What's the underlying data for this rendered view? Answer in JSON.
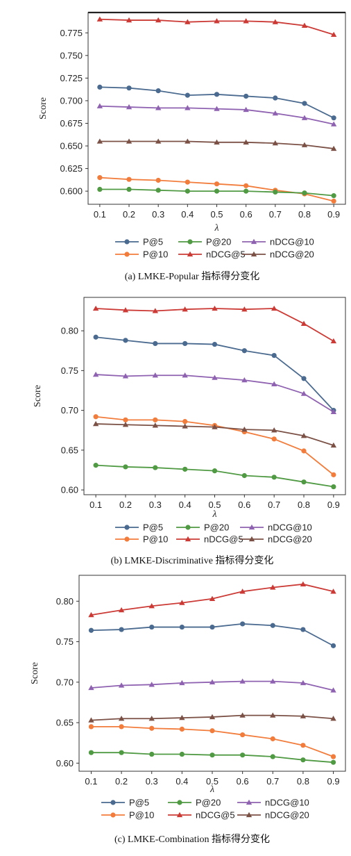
{
  "chart_data": [
    {
      "type": "line",
      "caption": "(a) LMKE-Popular 指标得分变化",
      "xlabel": "λ",
      "ylabel": "Score",
      "x": [
        0.1,
        0.2,
        0.3,
        0.4,
        0.5,
        0.6,
        0.7,
        0.8,
        0.9
      ],
      "x_ticks": [
        "0.1",
        "0.2",
        "0.3",
        "0.4",
        "0.5",
        "0.6",
        "0.7",
        "0.8",
        "0.9"
      ],
      "y_ticks": [
        "0.600",
        "0.625",
        "0.650",
        "0.675",
        "0.700",
        "0.725",
        "0.750",
        "0.775"
      ],
      "ylim": [
        0.5855,
        0.7975
      ],
      "xlim": [
        0.06,
        0.94
      ],
      "grid": false,
      "legend": "bottom",
      "series": [
        {
          "name": "P@5",
          "color": "#4a6a8f",
          "marker": "circle",
          "values": [
            0.715,
            0.714,
            0.711,
            0.706,
            0.707,
            0.705,
            0.703,
            0.697,
            0.681
          ]
        },
        {
          "name": "P@10",
          "color": "#f27c3b",
          "marker": "circle",
          "values": [
            0.615,
            0.613,
            0.612,
            0.61,
            0.608,
            0.606,
            0.601,
            0.597,
            0.589
          ]
        },
        {
          "name": "P@20",
          "color": "#4f9a43",
          "marker": "circle",
          "values": [
            0.602,
            0.602,
            0.601,
            0.6,
            0.6,
            0.6,
            0.599,
            0.598,
            0.595
          ]
        },
        {
          "name": "nDCG@5",
          "color": "#cc3a35",
          "marker": "triangle",
          "values": [
            0.79,
            0.789,
            0.789,
            0.787,
            0.788,
            0.788,
            0.787,
            0.783,
            0.773
          ]
        },
        {
          "name": "nDCG@10",
          "color": "#8f62b1",
          "marker": "triangle",
          "values": [
            0.694,
            0.693,
            0.692,
            0.692,
            0.691,
            0.69,
            0.686,
            0.681,
            0.674
          ]
        },
        {
          "name": "nDCG@20",
          "color": "#7b5146",
          "marker": "triangle",
          "values": [
            0.655,
            0.655,
            0.655,
            0.655,
            0.654,
            0.654,
            0.653,
            0.651,
            0.647
          ]
        }
      ]
    },
    {
      "type": "line",
      "caption": "(b) LMKE-Discriminative 指标得分变化",
      "xlabel": "λ",
      "ylabel": "Score",
      "x": [
        0.1,
        0.2,
        0.3,
        0.4,
        0.5,
        0.6,
        0.7,
        0.8,
        0.9
      ],
      "x_ticks": [
        "0.1",
        "0.2",
        "0.3",
        "0.4",
        "0.5",
        "0.6",
        "0.7",
        "0.8",
        "0.9"
      ],
      "y_ticks": [
        "0.60",
        "0.65",
        "0.70",
        "0.75",
        "0.80"
      ],
      "ylim": [
        0.594,
        0.842
      ],
      "xlim": [
        0.06,
        0.94
      ],
      "grid": false,
      "legend": "bottom",
      "series": [
        {
          "name": "P@5",
          "color": "#4a6a8f",
          "marker": "circle",
          "values": [
            0.792,
            0.788,
            0.784,
            0.784,
            0.783,
            0.775,
            0.769,
            0.74,
            0.7
          ]
        },
        {
          "name": "P@10",
          "color": "#f27c3b",
          "marker": "circle",
          "values": [
            0.692,
            0.688,
            0.688,
            0.686,
            0.681,
            0.673,
            0.664,
            0.649,
            0.619
          ]
        },
        {
          "name": "P@20",
          "color": "#4f9a43",
          "marker": "circle",
          "values": [
            0.631,
            0.629,
            0.628,
            0.626,
            0.624,
            0.618,
            0.616,
            0.61,
            0.604
          ]
        },
        {
          "name": "nDCG@5",
          "color": "#cc3a35",
          "marker": "triangle",
          "values": [
            0.828,
            0.826,
            0.825,
            0.827,
            0.828,
            0.827,
            0.828,
            0.809,
            0.787
          ]
        },
        {
          "name": "nDCG@10",
          "color": "#8f62b1",
          "marker": "triangle",
          "values": [
            0.745,
            0.743,
            0.744,
            0.744,
            0.741,
            0.738,
            0.733,
            0.721,
            0.698
          ]
        },
        {
          "name": "nDCG@20",
          "color": "#7b5146",
          "marker": "triangle",
          "values": [
            0.683,
            0.682,
            0.681,
            0.68,
            0.679,
            0.676,
            0.675,
            0.668,
            0.656
          ]
        }
      ]
    },
    {
      "type": "line",
      "caption": "(c) LMKE-Combination 指标得分变化",
      "xlabel": "λ",
      "ylabel": "Score",
      "x": [
        0.1,
        0.2,
        0.3,
        0.4,
        0.5,
        0.6,
        0.7,
        0.8,
        0.9
      ],
      "x_ticks": [
        "0.1",
        "0.2",
        "0.3",
        "0.4",
        "0.5",
        "0.6",
        "0.7",
        "0.8",
        "0.9"
      ],
      "y_ticks": [
        "0.60",
        "0.65",
        "0.70",
        "0.75",
        "0.80"
      ],
      "ylim": [
        0.59,
        0.832
      ],
      "xlim": [
        0.06,
        0.94
      ],
      "grid": false,
      "legend": "bottom",
      "series": [
        {
          "name": "P@5",
          "color": "#4a6a8f",
          "marker": "circle",
          "values": [
            0.764,
            0.765,
            0.768,
            0.768,
            0.768,
            0.772,
            0.77,
            0.765,
            0.745
          ]
        },
        {
          "name": "P@10",
          "color": "#f27c3b",
          "marker": "circle",
          "values": [
            0.645,
            0.645,
            0.643,
            0.642,
            0.64,
            0.635,
            0.63,
            0.622,
            0.608
          ]
        },
        {
          "name": "P@20",
          "color": "#4f9a43",
          "marker": "circle",
          "values": [
            0.613,
            0.613,
            0.611,
            0.611,
            0.61,
            0.61,
            0.608,
            0.604,
            0.601
          ]
        },
        {
          "name": "nDCG@5",
          "color": "#cc3a35",
          "marker": "triangle",
          "values": [
            0.783,
            0.789,
            0.794,
            0.798,
            0.803,
            0.812,
            0.817,
            0.821,
            0.812
          ]
        },
        {
          "name": "nDCG@10",
          "color": "#8f62b1",
          "marker": "triangle",
          "values": [
            0.693,
            0.696,
            0.697,
            0.699,
            0.7,
            0.701,
            0.701,
            0.699,
            0.69
          ]
        },
        {
          "name": "nDCG@20",
          "color": "#7b5146",
          "marker": "triangle",
          "values": [
            0.653,
            0.655,
            0.655,
            0.656,
            0.657,
            0.659,
            0.659,
            0.658,
            0.655
          ]
        }
      ]
    }
  ]
}
